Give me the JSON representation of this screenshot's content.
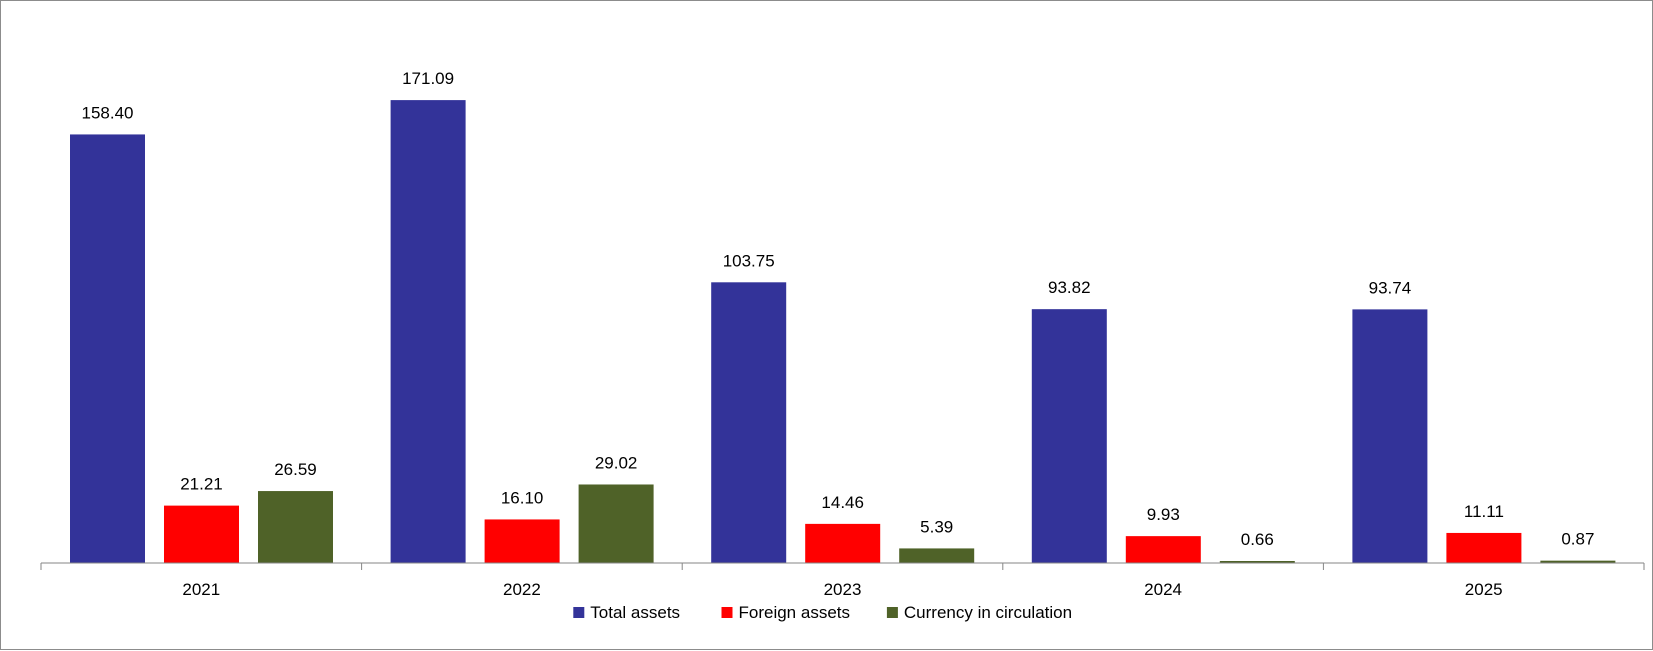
{
  "chart_data": {
    "type": "bar",
    "categories": [
      "2021",
      "2022",
      "2023",
      "2024",
      "2025"
    ],
    "series": [
      {
        "name": "Total assets",
        "color": "#333399",
        "values": [
          158.4,
          171.09,
          103.75,
          93.82,
          93.74
        ],
        "labels": [
          "158.40",
          "171.09",
          "103.75",
          "93.82",
          "93.74"
        ]
      },
      {
        "name": "Foreign assets",
        "color": "#ff0000",
        "values": [
          21.21,
          16.1,
          14.46,
          9.93,
          11.11
        ],
        "labels": [
          "21.21",
          "16.10",
          "14.46",
          "9.93",
          "11.11"
        ]
      },
      {
        "name": "Currency in circulation",
        "color": "#4f6228",
        "values": [
          26.59,
          29.02,
          5.39,
          0.66,
          0.87
        ],
        "labels": [
          "26.59",
          "29.02",
          "5.39",
          "0.66",
          "0.87"
        ]
      }
    ],
    "ylim": [
      0,
      180
    ],
    "grid": false,
    "legend_position": "bottom"
  }
}
